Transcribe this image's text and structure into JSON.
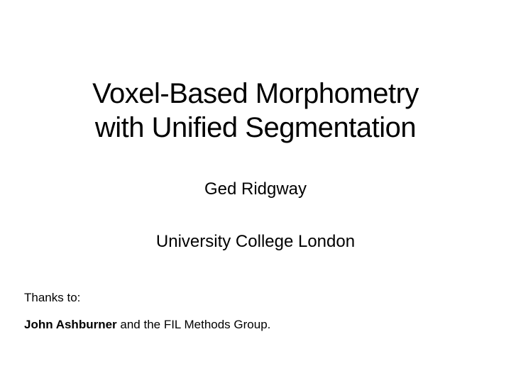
{
  "slide": {
    "title_line1": "Voxel-Based Morphometry",
    "title_line2": "with Unified Segmentation",
    "author": "Ged Ridgway",
    "affiliation": "University College London",
    "thanks_label": "Thanks to:",
    "thanks_bold": "John Ashburner",
    "thanks_rest": " and the FIL Methods Group.",
    "background_color": "#ffffff",
    "text_color": "#000000",
    "title_fontsize": 40,
    "subtitle_fontsize": 24,
    "footer_fontsize": 17
  }
}
